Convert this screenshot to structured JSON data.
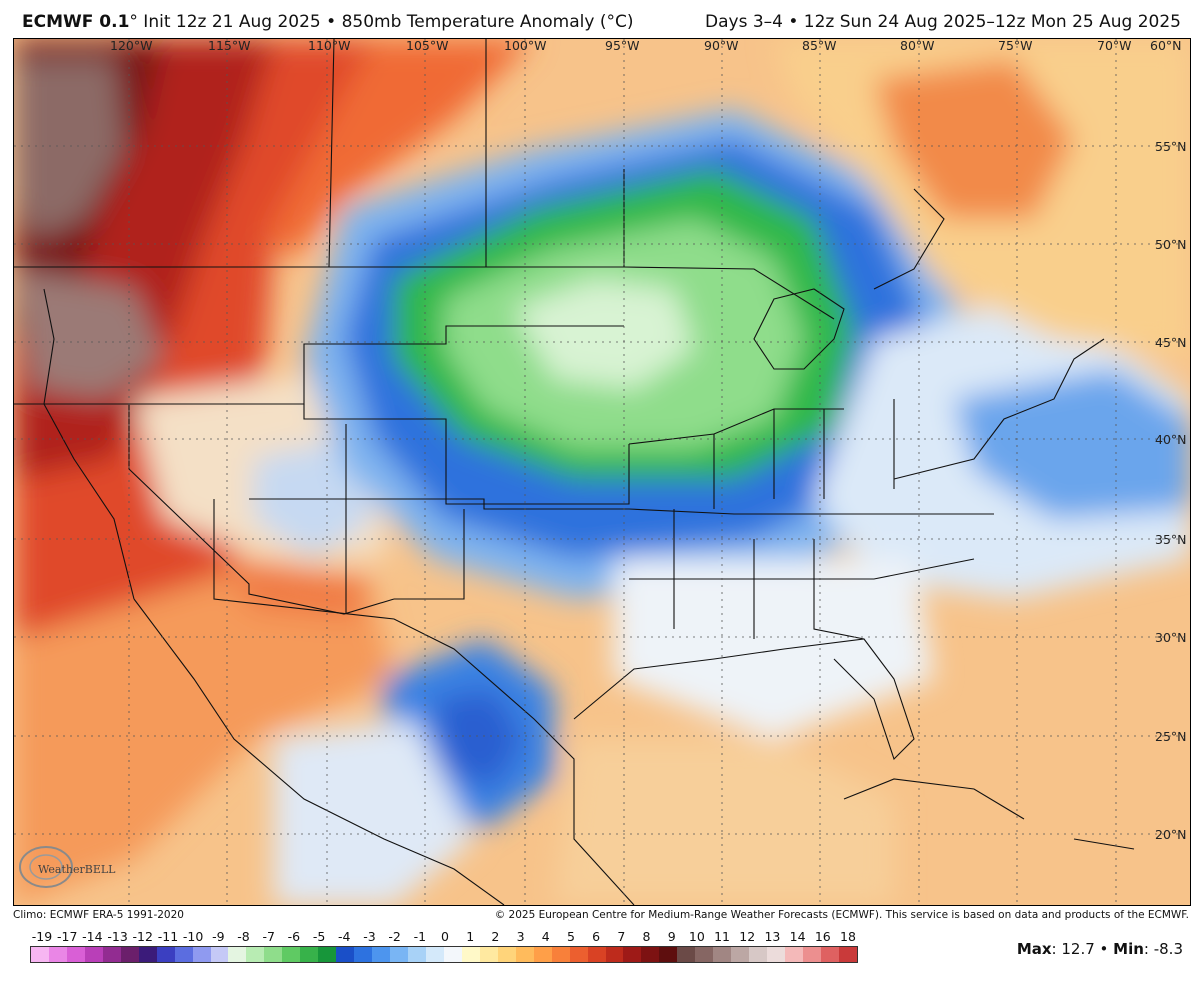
{
  "header": {
    "model": "ECMWF 0.1",
    "degree": "°",
    "init": " Init 12z 21 Aug 2025 • 850mb Temperature Anomaly (°C)",
    "valid": "Days 3–4 • 12z Sun 24 Aug 2025–12z Mon 25 Aug 2025"
  },
  "map": {
    "lon_labels": [
      "120°W",
      "115°W",
      "110°W",
      "105°W",
      "100°W",
      "95°W",
      "90°W",
      "85°W",
      "80°W",
      "75°W",
      "70°W",
      "60°N"
    ],
    "lat_labels": [
      "55°N",
      "50°N",
      "45°N",
      "40°N",
      "35°N",
      "30°N",
      "25°N",
      "20°N"
    ]
  },
  "credits": {
    "climo": "Climo: ECMWF ERA-5 1991-2020",
    "copyright": "© 2025 European Centre for Medium-Range Weather Forecasts (ECMWF). This service is based on data and products of the ECMWF."
  },
  "logo": {
    "text": "WeatherBELL"
  },
  "colorbar": {
    "labels": [
      "-19",
      "-17",
      "-14",
      "-13",
      "-12",
      "-11",
      "-10",
      "-9",
      "-8",
      "-7",
      "-6",
      "-5",
      "-4",
      "-3",
      "-2",
      "-1",
      "0",
      "1",
      "2",
      "3",
      "4",
      "5",
      "6",
      "7",
      "8",
      "9",
      "10",
      "11",
      "12",
      "13",
      "14",
      "16",
      "18"
    ],
    "colors": [
      "#f7b6f2",
      "#ea86e6",
      "#d95fd6",
      "#b93fb8",
      "#922c91",
      "#6b1f6b",
      "#3b1b7a",
      "#3b3fc1",
      "#5b6de0",
      "#8f9af0",
      "#c5c9f6",
      "#e4f5e1",
      "#b8ecb3",
      "#8fdd8b",
      "#5fca63",
      "#37b24a",
      "#17963a",
      "#1a4fc8",
      "#2d72e0",
      "#4d95ee",
      "#79b5f4",
      "#a8d2f7",
      "#d4e9fa",
      "#f3f7fb",
      "#fff9c8",
      "#ffe9a0",
      "#ffd47a",
      "#ffbb5c",
      "#ff9f48",
      "#f8803a",
      "#ec5f2f",
      "#d94224",
      "#be2b1c",
      "#9e1a17",
      "#7d1212",
      "#5e0e0e",
      "#6b4a47",
      "#866663",
      "#a18683",
      "#bca7a4",
      "#d7c8c6",
      "#ecdcdb",
      "#f4b9b9",
      "#ec8f8f",
      "#df6161",
      "#c93a3a"
    ]
  },
  "stats": {
    "max_label": "Max",
    "max_value": ": 12.7 • ",
    "min_label": "Min",
    "min_value": ": -8.3"
  }
}
